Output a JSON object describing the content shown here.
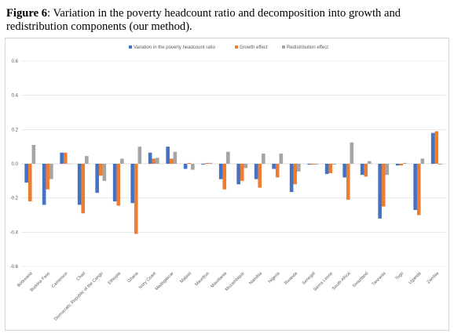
{
  "caption": {
    "figure_label": "Figure 6",
    "text": ": Variation in the poverty headcount ratio and decomposition into growth and redistribution components (our method)."
  },
  "colors": {
    "variation": "#4472C4",
    "growth": "#ED7D31",
    "redistribution": "#A5A5A5",
    "gridline": "#d9d9d9",
    "axis": "#bfbfbf"
  },
  "chart_data": {
    "type": "bar",
    "title": "",
    "xlabel": "",
    "ylabel": "",
    "ylim": [
      -0.6,
      0.6
    ],
    "yticks": [
      0.6,
      0.4,
      0.2,
      0.0,
      -0.2,
      -0.4,
      -0.6
    ],
    "ytick_labels": [
      "0.6",
      "0.4",
      "0.2",
      "0.0",
      "-0.2",
      "-0.4",
      "-0.6"
    ],
    "grid": true,
    "legend": "top",
    "categories": [
      "Botswana",
      "Burkina Faso",
      "Cameroon",
      "Chad",
      "Democratic Republic of the Congo",
      "Ethiopia",
      "Ghana",
      "Ivory Coast",
      "Madagascar",
      "Malawi",
      "Mauritius",
      "Mauritania",
      "Mozambique",
      "Namibia",
      "Nigeria",
      "Rwanda",
      "Senegal",
      "Sierra Leone",
      "South Africa",
      "Swaziland",
      "Tanzania",
      "Togo",
      "Uganda",
      "Zambia"
    ],
    "series": [
      {
        "name": "Variation in the poverty headcount ratio",
        "color": "#4472C4",
        "values": [
          -0.11,
          -0.24,
          0.065,
          -0.24,
          -0.17,
          -0.22,
          -0.23,
          0.065,
          0.1,
          -0.03,
          -0.005,
          -0.09,
          -0.12,
          -0.09,
          -0.03,
          -0.165,
          -0.005,
          -0.06,
          -0.08,
          -0.065,
          -0.32,
          -0.01,
          -0.27,
          0.18
        ]
      },
      {
        "name": "Growth effect",
        "color": "#ED7D31",
        "values": [
          -0.22,
          -0.15,
          0.065,
          -0.29,
          -0.07,
          -0.245,
          -0.41,
          0.03,
          0.03,
          0.005,
          0.005,
          -0.15,
          -0.1,
          -0.14,
          -0.08,
          -0.12,
          -0.005,
          -0.055,
          -0.21,
          -0.075,
          -0.25,
          -0.01,
          -0.3,
          0.19
        ]
      },
      {
        "name": "Redistribution effect",
        "color": "#A5A5A5",
        "values": [
          0.11,
          -0.09,
          0.0,
          0.045,
          -0.1,
          0.03,
          0.1,
          0.035,
          0.07,
          -0.035,
          0.005,
          0.07,
          -0.025,
          0.06,
          0.06,
          -0.045,
          -0.005,
          -0.005,
          0.125,
          0.015,
          -0.065,
          0.005,
          0.03,
          -0.005
        ]
      }
    ]
  }
}
